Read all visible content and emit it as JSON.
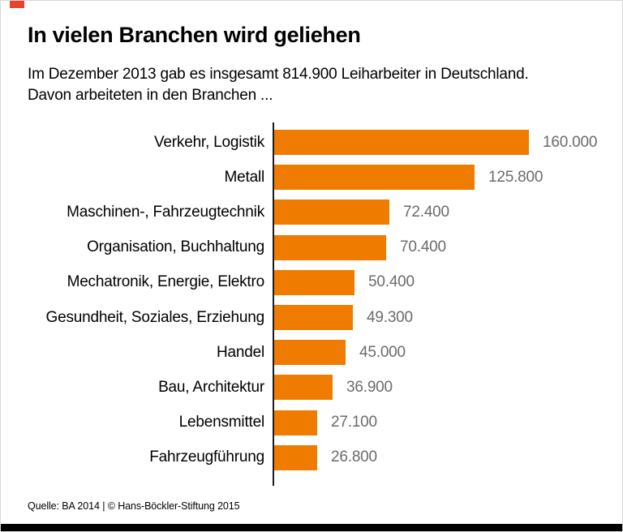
{
  "page": {
    "background": "#ffffff",
    "border_color": "#d9d9d9"
  },
  "brand": {
    "mark_color": "#e8432d",
    "bottom_bar_color": "#000000"
  },
  "header": {
    "title": "In vielen Branchen wird geliehen",
    "subtitle_line1": "Im Dezember 2013 gab es insgesamt 814.900 Leiharbeiter in Deutschland.",
    "subtitle_line2": "Davon arbeiteten in den Branchen ..."
  },
  "chart_data": {
    "type": "bar",
    "orientation": "horizontal",
    "title": "In vielen Branchen wird geliehen",
    "categories": [
      "Verkehr, Logistik",
      "Metall",
      "Maschinen-, Fahrzeugtechnik",
      "Organisation, Buchhaltung",
      "Mechatronik, Energie, Elektro",
      "Gesundheit, Soziales, Erziehung",
      "Handel",
      "Bau, Architektur",
      "Lebensmittel",
      "Fahrzeugführung"
    ],
    "values": [
      160000,
      125800,
      72400,
      70400,
      50400,
      49300,
      45000,
      36900,
      27100,
      26800
    ],
    "value_labels": [
      "160.000",
      "125.800",
      "72.400",
      "70.400",
      "50.400",
      "49.300",
      "45.000",
      "36.900",
      "27.100",
      "26.800"
    ],
    "total_reference": "814.900",
    "xlim": [
      0,
      160000
    ],
    "grid": false,
    "legend": false,
    "bar_color": "#ef7c00",
    "axis_color": "#1a1a1a",
    "label_color": "#000000",
    "value_label_color": "#6b6b6b"
  },
  "footer": {
    "source": "Quelle: BA 2014 | © Hans-Böckler-Stiftung 2015"
  }
}
